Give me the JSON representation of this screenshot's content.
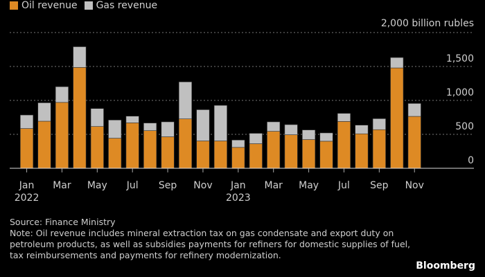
{
  "chart_data": {
    "type": "bar",
    "stacked": true,
    "unit_label": "2,000 billion rubles",
    "categories": [
      "Jan 2022",
      "Feb 2022",
      "Mar 2022",
      "Apr 2022",
      "May 2022",
      "Jun 2022",
      "Jul 2022",
      "Aug 2022",
      "Sep 2022",
      "Oct 2022",
      "Nov 2022",
      "Dec 2022",
      "Jan 2023",
      "Feb 2023",
      "Mar 2023",
      "Apr 2023",
      "May 2023",
      "Jun 2023",
      "Jul 2023",
      "Aug 2023",
      "Sep 2023",
      "Oct 2023",
      "Nov 2023"
    ],
    "x_tick_labels": [
      {
        "index": 0,
        "label": "Jan",
        "year": "2022"
      },
      {
        "index": 2,
        "label": "Mar"
      },
      {
        "index": 4,
        "label": "May"
      },
      {
        "index": 6,
        "label": "Jul"
      },
      {
        "index": 8,
        "label": "Sep"
      },
      {
        "index": 10,
        "label": "Nov"
      },
      {
        "index": 12,
        "label": "Jan",
        "year": "2023"
      },
      {
        "index": 14,
        "label": "Mar"
      },
      {
        "index": 16,
        "label": "May"
      },
      {
        "index": 18,
        "label": "Jul"
      },
      {
        "index": 20,
        "label": "Sep"
      },
      {
        "index": 22,
        "label": "Nov"
      }
    ],
    "series": [
      {
        "name": "Oil revenue",
        "color": "#de8a24",
        "values": [
          586,
          694,
          971,
          1486,
          616,
          443,
          670,
          555,
          464,
          728,
          403,
          403,
          308,
          362,
          545,
          494,
          423,
          399,
          690,
          508,
          569,
          1479,
          765
        ]
      },
      {
        "name": "Gas revenue",
        "color": "#c0c0c0",
        "values": [
          199,
          271,
          231,
          305,
          264,
          268,
          98,
          112,
          220,
          545,
          460,
          524,
          108,
          153,
          139,
          149,
          142,
          122,
          119,
          128,
          162,
          153,
          190
        ]
      }
    ],
    "y_ticks": [
      "0",
      "500",
      "1,000",
      "1,500"
    ],
    "y_tick_values": [
      0,
      500,
      1000,
      1500,
      2000
    ],
    "ylim": [
      0,
      2000
    ],
    "grid": true,
    "legend": "top-left"
  },
  "footer": {
    "source": "Source: Finance Ministry",
    "note": "Note: Oil revenue includes mineral extraction tax on gas condensate and export duty on petroleum products, as well as subsidies payments for refiners for domestic supplies of fuel, tax reimbursements and payments for refinery modernization."
  },
  "brand": "Bloomberg"
}
